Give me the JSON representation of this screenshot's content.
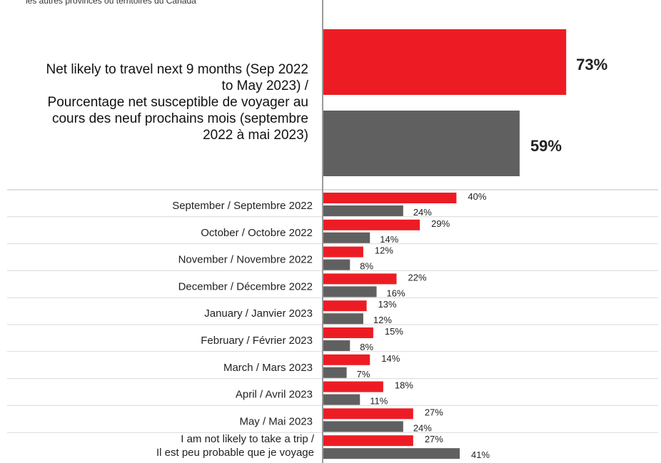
{
  "top_note": "les autres provinces ou territoires du Canada",
  "colors": {
    "series_a": "#ed1c24",
    "series_b": "#606060",
    "axis": "#9a9a9a",
    "separator": "#bfbfbf"
  },
  "chart_data": {
    "type": "bar",
    "orientation": "horizontal",
    "xlim": [
      0,
      80
    ],
    "value_suffix": "%",
    "grid": false,
    "legend": "none",
    "headline": {
      "category": "Net likely to travel next 9 months (Sep 2022 to May 2023) / Pourcentage net susceptible de voyager au cours des neuf prochains mois (septembre 2022 à mai 2023)",
      "label_lines": [
        "Net likely to travel next 9 months (Sep 2022",
        "to May 2023) /",
        "Pourcentage net susceptible de voyager au",
        "cours des neuf prochains mois (septembre",
        "2022 à mai 2023)"
      ],
      "values": [
        73,
        59
      ],
      "data_labels": [
        "73%",
        "59%"
      ]
    },
    "categories": [
      [
        "September / Septembre 2022"
      ],
      [
        "October / Octobre 2022"
      ],
      [
        "November / Novembre 2022"
      ],
      [
        "December / Décembre 2022"
      ],
      [
        "January / Janvier 2023"
      ],
      [
        "February / Février  2023"
      ],
      [
        "March / Mars  2023"
      ],
      [
        "April / Avril  2023"
      ],
      [
        "May / Mai  2023"
      ],
      [
        "I am not likely to take a trip /",
        "Il est peu probable que je voyage"
      ]
    ],
    "series": [
      {
        "values": [
          40,
          29,
          12,
          22,
          13,
          15,
          14,
          18,
          27,
          27
        ],
        "data_labels": [
          "40%",
          "29%",
          "12%",
          "22%",
          "13%",
          "15%",
          "14%",
          "18%",
          "27%",
          "27%"
        ]
      },
      {
        "values": [
          24,
          14,
          8,
          16,
          12,
          8,
          7,
          11,
          24,
          41
        ],
        "data_labels": [
          "24%",
          "14%",
          "8%",
          "16%",
          "12%",
          "8%",
          "7%",
          "11%",
          "24%",
          "41%"
        ]
      }
    ]
  }
}
